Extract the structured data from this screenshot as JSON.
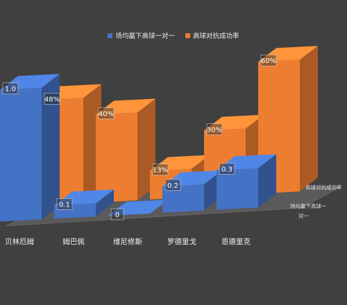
{
  "chart_data": {
    "type": "bar",
    "title": "",
    "xlabel": "",
    "ylabel": "",
    "categories": [
      "贝林厄姆",
      "姆巴佩",
      "维尼修斯",
      "罗德里戈",
      "恩德里克"
    ],
    "series": [
      {
        "name": "场均赢下高球一对一",
        "color": "#4472C4",
        "values": [
          1.0,
          0.1,
          0,
          0.2,
          0.3
        ],
        "labels": [
          "1.0",
          "0.1",
          "0",
          "0.2",
          "0.3"
        ],
        "ylim": [
          0,
          1.0
        ]
      },
      {
        "name": "高球对抗成功率",
        "color": "#ED7D31",
        "values": [
          48,
          40,
          13,
          30,
          60
        ],
        "labels": [
          "48%",
          "40%",
          "13%",
          "30%",
          "60%"
        ],
        "ylim": [
          0,
          60
        ]
      }
    ],
    "depth_labels": [
      "高球对抗成功率",
      "场均赢下高球一",
      "对一"
    ],
    "legend_position": "top",
    "grid": false
  }
}
